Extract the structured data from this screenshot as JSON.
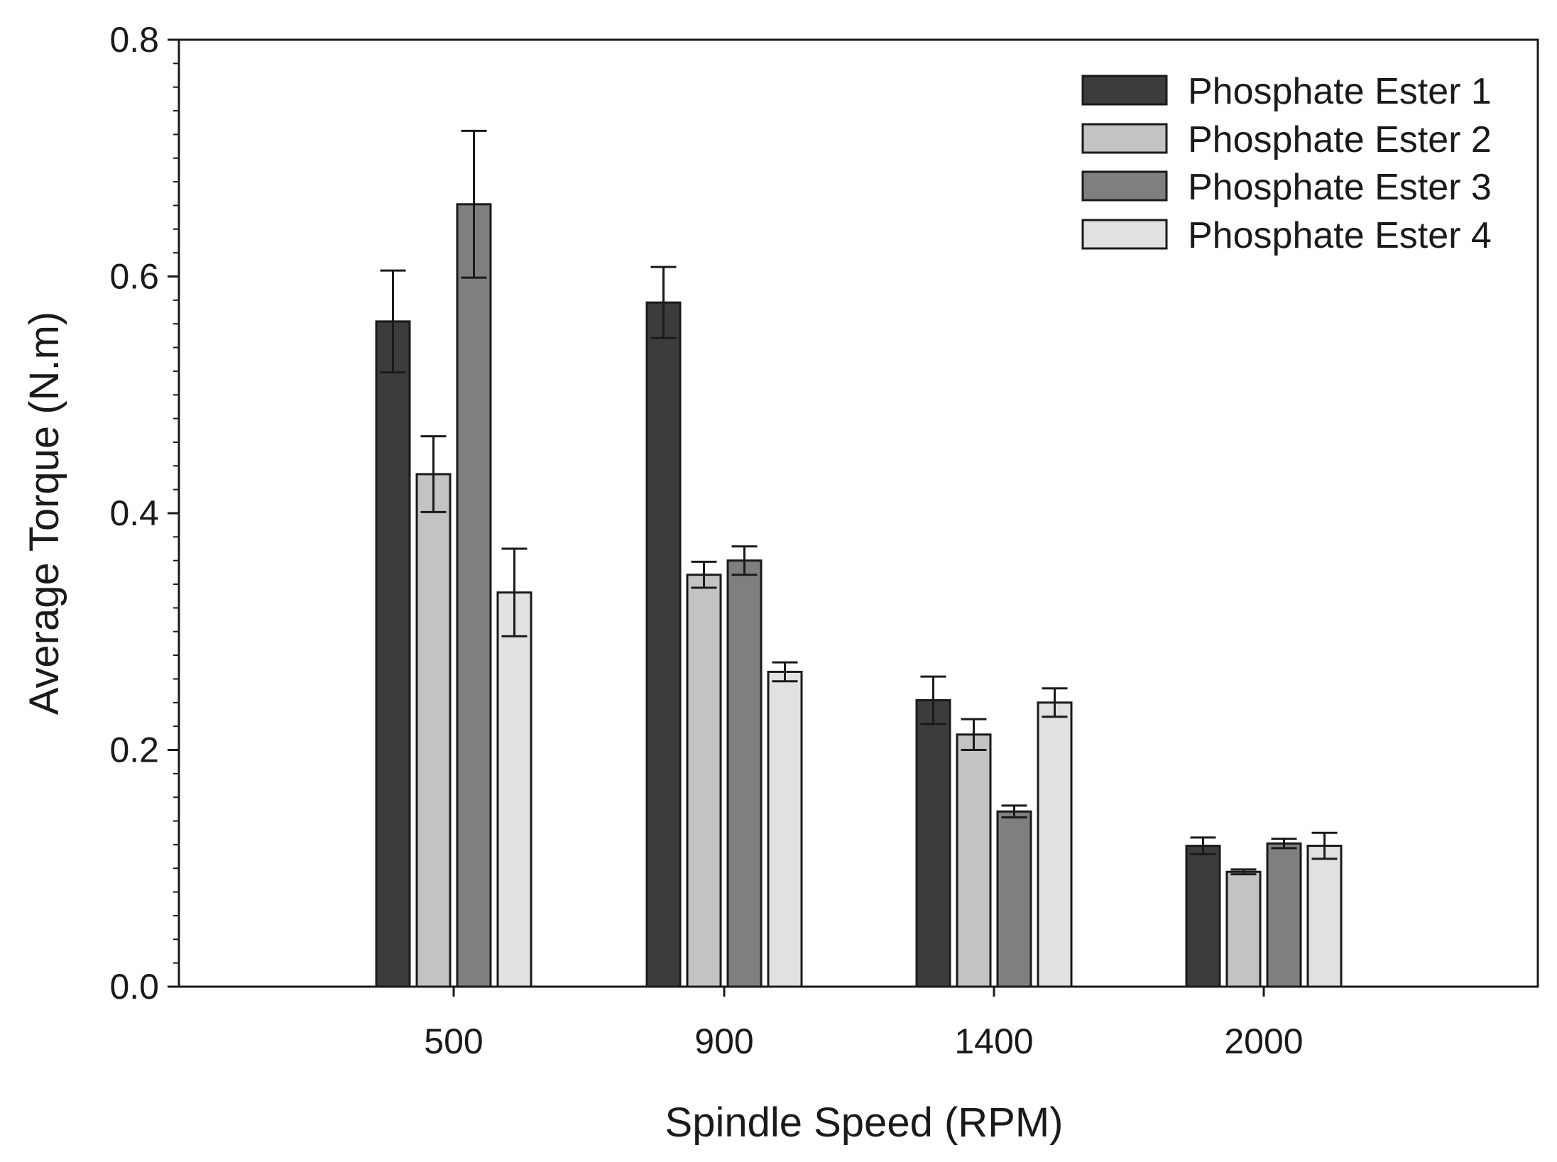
{
  "chart_data": {
    "type": "bar",
    "title": "",
    "xlabel": "Spindle Speed (RPM)",
    "ylabel": "Average Torque (N.m)",
    "ylim": [
      0,
      0.8
    ],
    "yticks": [
      "0.0",
      "0.2",
      "0.4",
      "0.6",
      "0.8"
    ],
    "categories": [
      "500",
      "900",
      "1400",
      "2000"
    ],
    "legend_position": "top-right",
    "grid": false,
    "series": [
      {
        "name": "Phosphate Ester 1",
        "color": "#3c3c3c",
        "values": [
          0.562,
          0.578,
          0.242,
          0.119
        ],
        "errors": [
          0.043,
          0.03,
          0.02,
          0.007
        ]
      },
      {
        "name": "Phosphate Ester 2",
        "color": "#c3c3c3",
        "values": [
          0.433,
          0.348,
          0.213,
          0.097
        ],
        "errors": [
          0.032,
          0.011,
          0.013,
          0.002
        ]
      },
      {
        "name": "Phosphate Ester 3",
        "color": "#7f7f7f",
        "values": [
          0.661,
          0.36,
          0.148,
          0.121
        ],
        "errors": [
          0.062,
          0.012,
          0.005,
          0.004
        ]
      },
      {
        "name": "Phosphate Ester 4",
        "color": "#e1e1e1",
        "values": [
          0.333,
          0.266,
          0.24,
          0.119
        ],
        "errors": [
          0.037,
          0.008,
          0.012,
          0.011
        ]
      }
    ]
  }
}
